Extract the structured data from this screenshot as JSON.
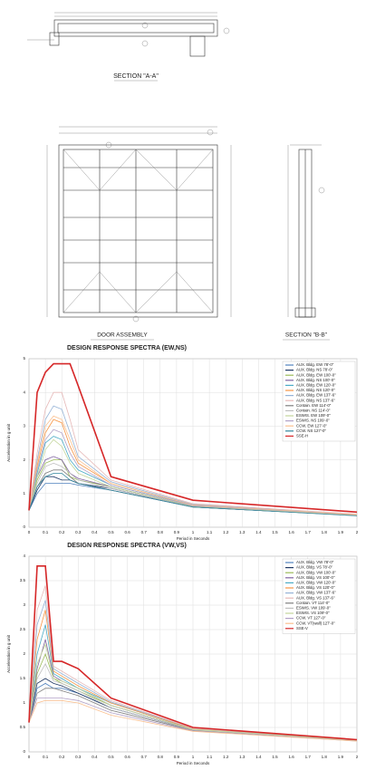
{
  "drawings": {
    "section_a": "SECTION \"A-A\"",
    "door_assembly": "DOOR ASSEMBLY",
    "section_b": "SECTION \"B-B\""
  },
  "chart_data": [
    {
      "type": "line",
      "title": "DESIGN RESPONSE SPECTRA (EW,NS)",
      "x_label": "Period in Seconds",
      "y_label": "Acceleration in g unit",
      "x": [
        0,
        0.05,
        0.1,
        0.15,
        0.2,
        0.25,
        0.3,
        0.5,
        1,
        2
      ],
      "xlim": [
        0,
        2
      ],
      "xticks": [
        0,
        0.1,
        0.2,
        0.3,
        0.4,
        0.5,
        0.6,
        0.7,
        0.8,
        0.9,
        1,
        1.1,
        1.2,
        1.3,
        1.4,
        1.5,
        1.6,
        1.7,
        1.8,
        1.9,
        2
      ],
      "ylim": [
        0,
        5
      ],
      "yticks": [
        0,
        1,
        2,
        3,
        4,
        5
      ],
      "grid": true,
      "legend": "upper right",
      "series": [
        {
          "name": "AUX. Bldg. EW 78'-0\"",
          "color": "#4f81bd",
          "values": [
            0.5,
            1.0,
            1.3,
            1.3,
            1.3,
            1.3,
            1.25,
            1.1,
            0.6,
            0.35
          ]
        },
        {
          "name": "AUX. Bldg. NS 78'-0\"",
          "color": "#1f3864",
          "values": [
            0.5,
            1.1,
            1.5,
            1.5,
            1.4,
            1.4,
            1.3,
            1.15,
            0.6,
            0.35
          ]
        },
        {
          "name": "AUX. Bldg. EW 100'-0\"",
          "color": "#9bbb59",
          "values": [
            0.5,
            1.4,
            1.9,
            2.0,
            2.0,
            1.5,
            1.4,
            1.2,
            0.62,
            0.36
          ]
        },
        {
          "name": "AUX. Bldg. NS 100'-0\"",
          "color": "#8064a2",
          "values": [
            0.5,
            1.5,
            2.0,
            2.1,
            2.0,
            1.6,
            1.45,
            1.2,
            0.62,
            0.36
          ]
        },
        {
          "name": "AUX. Bldg. EW 120'-0\"",
          "color": "#4bacc6",
          "values": [
            0.5,
            1.6,
            2.5,
            2.7,
            2.6,
            2.0,
            1.7,
            1.25,
            0.65,
            0.37
          ]
        },
        {
          "name": "AUX. Bldg. NS 120'-0\"",
          "color": "#f79646",
          "values": [
            0.5,
            1.8,
            2.8,
            3.2,
            3.1,
            2.4,
            1.9,
            1.3,
            0.66,
            0.38
          ]
        },
        {
          "name": "AUX. Bldg. EW 137'-6\"",
          "color": "#95b3d7",
          "values": [
            0.5,
            2.0,
            3.2,
            3.6,
            3.5,
            2.8,
            2.1,
            1.35,
            0.68,
            0.38
          ]
        },
        {
          "name": "AUX. Bldg. NS 137'-6\"",
          "color": "#e6b9b8",
          "values": [
            0.5,
            2.2,
            3.5,
            4.0,
            4.0,
            3.2,
            2.3,
            1.4,
            0.7,
            0.39
          ]
        },
        {
          "name": "Contain. EW 114'-0\"",
          "color": "#7f7f7f",
          "values": [
            0.5,
            1.2,
            1.6,
            1.7,
            1.7,
            1.5,
            1.3,
            1.1,
            0.6,
            0.35
          ]
        },
        {
          "name": "Contain. NS 114'-0\"",
          "color": "#bfbfbf",
          "values": [
            0.5,
            1.3,
            1.8,
            1.9,
            1.8,
            1.6,
            1.4,
            1.15,
            0.6,
            0.35
          ]
        },
        {
          "name": "ESWIS. EW 109'-0\"",
          "color": "#c3d69b",
          "values": [
            0.5,
            1.5,
            2.3,
            2.6,
            2.4,
            1.9,
            1.6,
            1.2,
            0.62,
            0.36
          ]
        },
        {
          "name": "ESWIS. NS 109'-0\"",
          "color": "#b2a1c7",
          "values": [
            0.5,
            1.7,
            2.6,
            2.9,
            2.8,
            2.2,
            1.8,
            1.25,
            0.64,
            0.37
          ]
        },
        {
          "name": "CCW. EW 127'-0\"",
          "color": "#fac090",
          "values": [
            0.5,
            1.9,
            3.0,
            3.3,
            3.2,
            2.6,
            2.0,
            1.3,
            0.66,
            0.37
          ]
        },
        {
          "name": "CCW. NS 127'-0\"",
          "color": "#31859c",
          "values": [
            0.5,
            1.2,
            1.5,
            1.6,
            1.6,
            1.4,
            1.3,
            1.1,
            0.6,
            0.34
          ]
        },
        {
          "name": "SSE-H",
          "color": "#d62728",
          "values": [
            0.5,
            4.0,
            4.6,
            4.85,
            4.85,
            4.85,
            4.2,
            1.5,
            0.8,
            0.45
          ]
        }
      ]
    },
    {
      "type": "line",
      "title": "DESIGN RESPONSE SPECTRA (VW,VS)",
      "x_label": "Period in Seconds",
      "y_label": "Acceleration in g unit",
      "x": [
        0,
        0.05,
        0.1,
        0.15,
        0.2,
        0.3,
        0.5,
        1,
        2
      ],
      "xlim": [
        0,
        2
      ],
      "xticks": [
        0,
        0.1,
        0.2,
        0.3,
        0.4,
        0.5,
        0.6,
        0.7,
        0.8,
        0.9,
        1,
        1.1,
        1.2,
        1.3,
        1.4,
        1.5,
        1.6,
        1.7,
        1.8,
        1.9,
        2
      ],
      "ylim": [
        0,
        4
      ],
      "yticks": [
        0,
        0.5,
        1,
        1.5,
        2,
        2.5,
        3,
        3.5,
        4
      ],
      "grid": true,
      "legend": "upper right",
      "series": [
        {
          "name": "AUX. Bldg. VW 78'-0\"",
          "color": "#4f81bd",
          "values": [
            0.6,
            1.3,
            1.4,
            1.3,
            1.3,
            1.2,
            0.9,
            0.45,
            0.23
          ]
        },
        {
          "name": "AUX. Bldg. VS 78'-0\"",
          "color": "#1f3864",
          "values": [
            0.6,
            1.4,
            1.5,
            1.4,
            1.35,
            1.2,
            0.9,
            0.45,
            0.23
          ]
        },
        {
          "name": "AUX. Bldg. VW 100'-0\"",
          "color": "#9bbb59",
          "values": [
            0.6,
            1.6,
            2.0,
            1.5,
            1.4,
            1.25,
            0.95,
            0.46,
            0.24
          ]
        },
        {
          "name": "AUX. Bldg. VS 100'-0\"",
          "color": "#8064a2",
          "values": [
            0.6,
            1.7,
            2.3,
            1.55,
            1.45,
            1.3,
            0.95,
            0.46,
            0.24
          ]
        },
        {
          "name": "AUX. Bldg. VW 120'-0\"",
          "color": "#4bacc6",
          "values": [
            0.6,
            2.0,
            2.6,
            1.6,
            1.5,
            1.3,
            1.0,
            0.47,
            0.24
          ]
        },
        {
          "name": "AUX. Bldg. VS 120'-0\"",
          "color": "#f79646",
          "values": [
            0.6,
            2.3,
            2.9,
            1.65,
            1.55,
            1.35,
            1.0,
            0.47,
            0.24
          ]
        },
        {
          "name": "AUX. Bldg. VW 137'-6\"",
          "color": "#95b3d7",
          "values": [
            0.6,
            2.6,
            3.1,
            1.7,
            1.6,
            1.4,
            1.02,
            0.48,
            0.24
          ]
        },
        {
          "name": "AUX. Bldg. VS 137'-6\"",
          "color": "#e6b9b8",
          "values": [
            0.6,
            2.9,
            3.4,
            1.75,
            1.65,
            1.45,
            1.05,
            0.48,
            0.25
          ]
        },
        {
          "name": "Contain. VT 114'-0\"",
          "color": "#7f7f7f",
          "values": [
            0.6,
            1.2,
            1.3,
            1.3,
            1.25,
            1.15,
            0.85,
            0.44,
            0.23
          ]
        },
        {
          "name": "ESWIS. VW 109'-0\"",
          "color": "#bfbfbf",
          "values": [
            0.6,
            1.5,
            1.8,
            1.45,
            1.4,
            1.25,
            0.9,
            0.45,
            0.23
          ]
        },
        {
          "name": "ESWIS. VS 109'-0\"",
          "color": "#c3d69b",
          "values": [
            0.6,
            1.8,
            2.2,
            1.5,
            1.45,
            1.3,
            0.95,
            0.46,
            0.24
          ]
        },
        {
          "name": "CCW. VT 127'-0\"",
          "color": "#b2a1c7",
          "values": [
            0.6,
            1.1,
            1.1,
            1.1,
            1.1,
            1.05,
            0.8,
            0.43,
            0.22
          ]
        },
        {
          "name": "CCW. VT(wall) 127'-0\"",
          "color": "#fac090",
          "values": [
            0.6,
            1.0,
            1.05,
            1.05,
            1.05,
            1.0,
            0.75,
            0.42,
            0.22
          ]
        },
        {
          "name": "SSE-V",
          "color": "#d62728",
          "values": [
            0.6,
            3.8,
            3.8,
            1.85,
            1.85,
            1.7,
            1.1,
            0.5,
            0.25
          ]
        }
      ]
    }
  ]
}
